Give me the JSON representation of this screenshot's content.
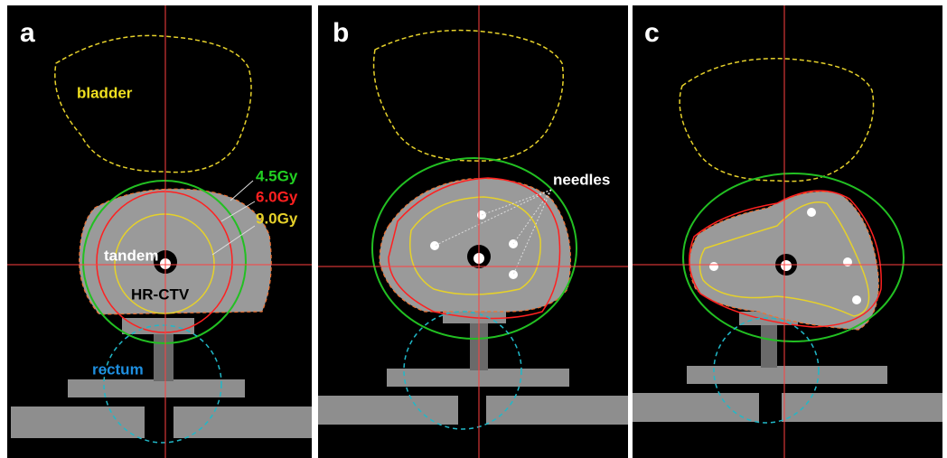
{
  "panels": [
    {
      "label": "a",
      "bladder": "bladder",
      "doses": [
        "4.5Gy",
        "6.0Gy",
        "9.0Gy"
      ],
      "tandem": "tandem",
      "target": "HR-CTV",
      "rectum": "rectum"
    },
    {
      "label": "b",
      "needles": "needles"
    },
    {
      "label": "c"
    }
  ]
}
